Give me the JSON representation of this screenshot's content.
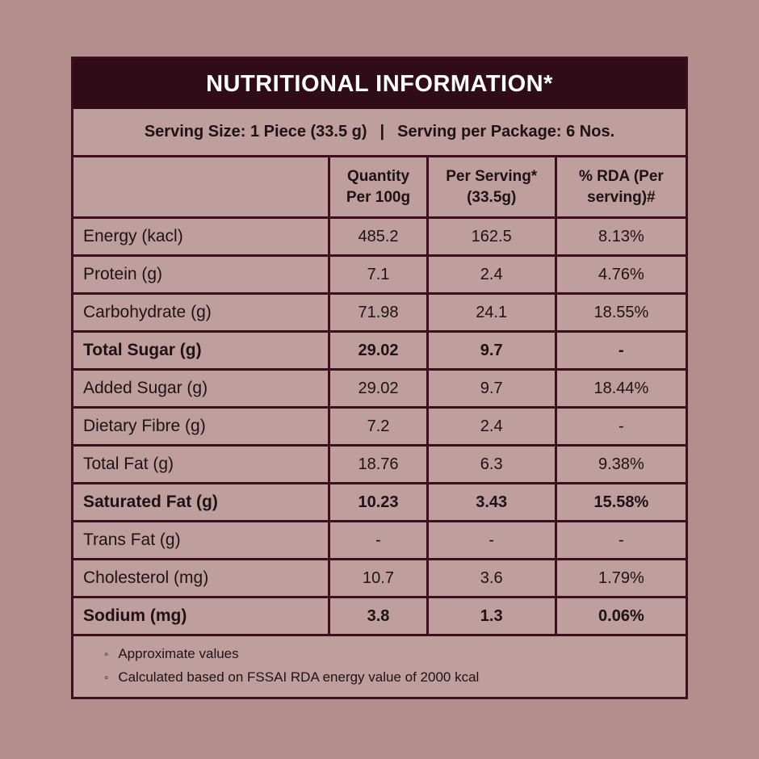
{
  "colors": {
    "page_background": "#b28e8c",
    "table_background": "#bf9f9d",
    "title_band_background": "#2f0c18",
    "border": "#3c0e1e",
    "title_text": "#ffffff",
    "body_text": "#1e1216"
  },
  "title": "NUTRITIONAL INFORMATION*",
  "serving": {
    "size_label": "Serving Size: 1 Piece (33.5 g)",
    "separator": "|",
    "package_label": "Serving per Package: 6 Nos."
  },
  "columns": {
    "nutrient": "",
    "quantity": "Quantity Per 100g",
    "per_serving": "Per Serving* (33.5g)",
    "rda": "% RDA (Per serving)#"
  },
  "rows": [
    {
      "label": "Energy (kacl)",
      "qty": "485.2",
      "per_serving": "162.5",
      "rda": "8.13%"
    },
    {
      "label": "Protein (g)",
      "qty": "7.1",
      "per_serving": "2.4",
      "rda": "4.76%"
    },
    {
      "label": "Carbohydrate (g)",
      "qty": "71.98",
      "per_serving": "24.1",
      "rda": "18.55%"
    },
    {
      "label": "Total Sugar (g)",
      "qty": "29.02",
      "per_serving": "9.7",
      "rda": "-"
    },
    {
      "label": "Added Sugar (g)",
      "qty": "29.02",
      "per_serving": "9.7",
      "rda": "18.44%"
    },
    {
      "label": "Dietary Fibre (g)",
      "qty": "7.2",
      "per_serving": "2.4",
      "rda": "-"
    },
    {
      "label": "Total Fat (g)",
      "qty": "18.76",
      "per_serving": "6.3",
      "rda": "9.38%"
    },
    {
      "label": "Saturated Fat (g)",
      "qty": "10.23",
      "per_serving": "3.43",
      "rda": "15.58%"
    },
    {
      "label": "Trans Fat (g)",
      "qty": "-",
      "per_serving": "-",
      "rda": "-"
    },
    {
      "label": "Cholesterol (mg)",
      "qty": "10.7",
      "per_serving": "3.6",
      "rda": "1.79%"
    },
    {
      "label": "Sodium (mg)",
      "qty": "3.8",
      "per_serving": "1.3",
      "rda": "0.06%"
    }
  ],
  "notes": {
    "bullet": "◦",
    "items": [
      "Approximate values",
      "Calculated based on FSSAI RDA energy value of 2000 kcal"
    ]
  }
}
